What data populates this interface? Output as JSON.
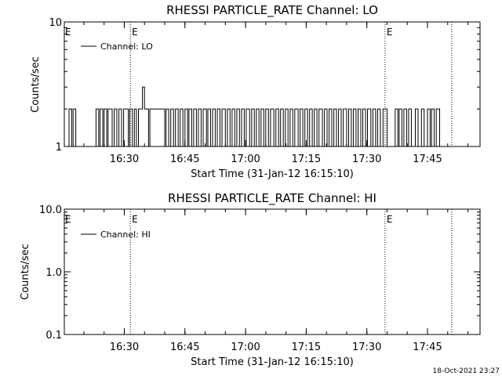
{
  "colors": {
    "background": "#ffffff",
    "foreground": "#000000"
  },
  "footer": {
    "timestamp": "18-Oct-2021 23:27"
  },
  "chart_data": [
    {
      "type": "line",
      "title": "RHESSI PARTICLE_RATE Channel: LO",
      "xlabel": "Start Time (31-Jan-12 16:15:10)",
      "ylabel": "Counts/sec",
      "yscale": "log",
      "xlim": [
        "16:15:10",
        "17:58:00"
      ],
      "ylim": [
        1,
        10
      ],
      "x_ticks": [
        "16:30",
        "16:45",
        "17:00",
        "17:15",
        "17:30",
        "17:45"
      ],
      "y_ticks": [
        "1",
        "10"
      ],
      "legend": {
        "placement": "top-left",
        "entries": [
          "Channel: LO"
        ]
      },
      "event_markers": [
        {
          "time": "16:31:30",
          "label": "E"
        },
        {
          "time": "17:34:30",
          "label": "E"
        },
        {
          "time": "17:51:00",
          "label": ""
        }
      ],
      "grid": false,
      "series": [
        {
          "name": "Channel: LO",
          "step_profile": [
            [
              "16:16:00",
              1
            ],
            [
              "16:16:20",
              2
            ],
            [
              "16:17:00",
              1
            ],
            [
              "16:17:20",
              2
            ],
            [
              "16:18:00",
              1
            ],
            [
              "16:23:00",
              2
            ],
            [
              "16:23:40",
              1
            ],
            [
              "16:24:00",
              2
            ],
            [
              "16:24:40",
              1
            ],
            [
              "16:25:00",
              2
            ],
            [
              "16:25:40",
              1
            ],
            [
              "16:26:00",
              2
            ],
            [
              "16:27:00",
              1
            ],
            [
              "16:27:30",
              2
            ],
            [
              "16:28:10",
              1
            ],
            [
              "16:28:40",
              2
            ],
            [
              "16:29:20",
              1
            ],
            [
              "16:29:50",
              2
            ],
            [
              "16:31:00",
              1
            ],
            [
              "16:31:20",
              2
            ],
            [
              "16:32:00",
              1
            ],
            [
              "16:32:30",
              2
            ],
            [
              "16:33:00",
              1
            ],
            [
              "16:33:30",
              2
            ],
            [
              "16:34:30",
              3
            ],
            [
              "16:35:00",
              2
            ],
            [
              "16:36:00",
              1
            ],
            [
              "16:36:20",
              2
            ],
            [
              "16:40:00",
              1
            ],
            [
              "16:40:20",
              2
            ],
            [
              "16:41:00",
              1
            ],
            [
              "16:41:30",
              2
            ],
            [
              "16:42:10",
              1
            ],
            [
              "16:42:40",
              2
            ],
            [
              "16:43:20",
              1
            ],
            [
              "16:43:50",
              2
            ],
            [
              "16:44:30",
              1
            ],
            [
              "16:45:00",
              2
            ],
            [
              "16:45:40",
              1
            ],
            [
              "16:46:00",
              2
            ],
            [
              "16:46:40",
              1
            ],
            [
              "16:47:10",
              2
            ],
            [
              "16:47:50",
              1
            ],
            [
              "16:48:20",
              2
            ],
            [
              "16:49:00",
              1
            ],
            [
              "16:49:30",
              2
            ],
            [
              "16:50:20",
              1
            ],
            [
              "16:50:40",
              2
            ],
            [
              "16:51:20",
              1
            ],
            [
              "16:51:50",
              2
            ],
            [
              "16:52:30",
              1
            ],
            [
              "16:53:00",
              2
            ],
            [
              "16:53:40",
              1
            ],
            [
              "16:54:10",
              2
            ],
            [
              "16:55:00",
              1
            ],
            [
              "16:55:30",
              2
            ],
            [
              "16:56:10",
              1
            ],
            [
              "16:56:40",
              2
            ],
            [
              "16:57:20",
              1
            ],
            [
              "16:57:50",
              2
            ],
            [
              "16:58:30",
              1
            ],
            [
              "16:59:00",
              2
            ],
            [
              "16:59:40",
              1
            ],
            [
              "17:00:10",
              2
            ],
            [
              "17:01:00",
              1
            ],
            [
              "17:01:30",
              2
            ],
            [
              "17:02:10",
              1
            ],
            [
              "17:02:40",
              2
            ],
            [
              "17:03:20",
              1
            ],
            [
              "17:03:50",
              2
            ],
            [
              "17:04:30",
              1
            ],
            [
              "17:05:00",
              2
            ],
            [
              "17:05:40",
              1
            ],
            [
              "17:06:10",
              2
            ],
            [
              "17:07:00",
              1
            ],
            [
              "17:07:30",
              2
            ],
            [
              "17:08:10",
              1
            ],
            [
              "17:08:40",
              2
            ],
            [
              "17:09:20",
              1
            ],
            [
              "17:09:50",
              2
            ],
            [
              "17:10:30",
              1
            ],
            [
              "17:11:00",
              2
            ],
            [
              "17:11:40",
              1
            ],
            [
              "17:12:10",
              2
            ],
            [
              "17:13:00",
              1
            ],
            [
              "17:13:30",
              2
            ],
            [
              "17:14:10",
              1
            ],
            [
              "17:14:40",
              2
            ],
            [
              "17:15:20",
              1
            ],
            [
              "17:15:50",
              2
            ],
            [
              "17:16:30",
              1
            ],
            [
              "17:17:00",
              2
            ],
            [
              "17:17:40",
              1
            ],
            [
              "17:18:10",
              2
            ],
            [
              "17:19:00",
              1
            ],
            [
              "17:19:30",
              2
            ],
            [
              "17:20:10",
              1
            ],
            [
              "17:20:40",
              2
            ],
            [
              "17:21:20",
              1
            ],
            [
              "17:21:50",
              2
            ],
            [
              "17:22:30",
              1
            ],
            [
              "17:23:00",
              2
            ],
            [
              "17:23:40",
              1
            ],
            [
              "17:24:10",
              2
            ],
            [
              "17:25:00",
              1
            ],
            [
              "17:25:30",
              2
            ],
            [
              "17:26:10",
              1
            ],
            [
              "17:26:40",
              2
            ],
            [
              "17:27:20",
              1
            ],
            [
              "17:27:50",
              2
            ],
            [
              "17:28:30",
              1
            ],
            [
              "17:29:00",
              2
            ],
            [
              "17:29:40",
              1
            ],
            [
              "17:30:10",
              2
            ],
            [
              "17:31:00",
              1
            ],
            [
              "17:31:30",
              2
            ],
            [
              "17:32:10",
              1
            ],
            [
              "17:32:40",
              2
            ],
            [
              "17:33:20",
              1
            ],
            [
              "17:34:00",
              2
            ],
            [
              "17:35:00",
              1
            ],
            [
              "17:37:00",
              2
            ],
            [
              "17:37:40",
              1
            ],
            [
              "17:38:00",
              2
            ],
            [
              "17:38:40",
              1
            ],
            [
              "17:39:10",
              2
            ],
            [
              "17:39:50",
              1
            ],
            [
              "17:40:20",
              2
            ],
            [
              "17:41:00",
              1
            ],
            [
              "17:42:00",
              2
            ],
            [
              "17:42:40",
              1
            ],
            [
              "17:43:30",
              2
            ],
            [
              "17:44:10",
              1
            ],
            [
              "17:45:00",
              2
            ],
            [
              "17:45:40",
              1
            ],
            [
              "17:46:00",
              2
            ],
            [
              "17:46:40",
              1
            ],
            [
              "17:47:10",
              2
            ],
            [
              "17:48:00",
              1
            ],
            [
              "17:49:00",
              1
            ]
          ]
        }
      ]
    },
    {
      "type": "line",
      "title": "RHESSI PARTICLE_RATE Channel: HI",
      "xlabel": "Start Time (31-Jan-12 16:15:10)",
      "ylabel": "Counts/sec",
      "yscale": "log",
      "xlim": [
        "16:15:10",
        "17:58:00"
      ],
      "ylim": [
        0.1,
        10.0
      ],
      "x_ticks": [
        "16:30",
        "16:45",
        "17:00",
        "17:15",
        "17:30",
        "17:45"
      ],
      "y_ticks": [
        "0.1",
        "1.0",
        "10.0"
      ],
      "legend": {
        "placement": "top-left",
        "entries": [
          "Channel: HI"
        ]
      },
      "event_markers": [
        {
          "time": "16:31:30",
          "label": "E"
        },
        {
          "time": "17:34:30",
          "label": "E"
        },
        {
          "time": "17:51:00",
          "label": ""
        }
      ],
      "grid": false,
      "series": [
        {
          "name": "Channel: HI",
          "step_profile": []
        }
      ]
    }
  ]
}
